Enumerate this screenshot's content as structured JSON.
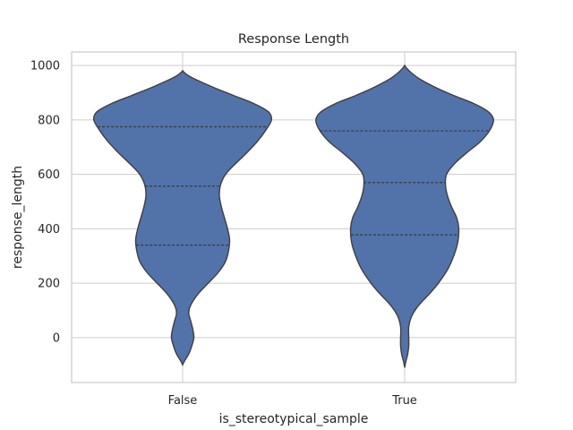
{
  "chart_data": {
    "type": "violin",
    "title": "Response Length",
    "xlabel": "is_stereotypical_sample",
    "ylabel": "response_length",
    "categories": [
      "False",
      "True"
    ],
    "ylim": [
      -165,
      1050
    ],
    "yticks": [
      0,
      200,
      400,
      600,
      800,
      1000
    ],
    "grid": true,
    "color": "#4f6fa8",
    "series": [
      {
        "category": "False",
        "min": -100,
        "max": 980,
        "quartiles": [
          340,
          557,
          775
        ],
        "density": [
          [
            -100,
            0.0
          ],
          [
            -85,
            0.02
          ],
          [
            -60,
            0.06
          ],
          [
            -30,
            0.09
          ],
          [
            0,
            0.11
          ],
          [
            30,
            0.1
          ],
          [
            60,
            0.08
          ],
          [
            90,
            0.06
          ],
          [
            120,
            0.08
          ],
          [
            160,
            0.15
          ],
          [
            200,
            0.25
          ],
          [
            240,
            0.35
          ],
          [
            280,
            0.42
          ],
          [
            320,
            0.45
          ],
          [
            360,
            0.46
          ],
          [
            400,
            0.44
          ],
          [
            440,
            0.41
          ],
          [
            480,
            0.38
          ],
          [
            520,
            0.36
          ],
          [
            560,
            0.37
          ],
          [
            600,
            0.42
          ],
          [
            640,
            0.52
          ],
          [
            680,
            0.63
          ],
          [
            720,
            0.73
          ],
          [
            760,
            0.81
          ],
          [
            800,
            0.87
          ],
          [
            830,
            0.84
          ],
          [
            860,
            0.7
          ],
          [
            890,
            0.5
          ],
          [
            920,
            0.3
          ],
          [
            945,
            0.15
          ],
          [
            960,
            0.07
          ],
          [
            970,
            0.03
          ],
          [
            980,
            0.0
          ]
        ]
      },
      {
        "category": "True",
        "min": -110,
        "max": 1000,
        "quartiles": [
          378,
          570,
          760
        ],
        "density": [
          [
            -110,
            0.0
          ],
          [
            -90,
            0.01
          ],
          [
            -60,
            0.03
          ],
          [
            -30,
            0.04
          ],
          [
            0,
            0.04
          ],
          [
            40,
            0.04
          ],
          [
            80,
            0.07
          ],
          [
            120,
            0.14
          ],
          [
            160,
            0.24
          ],
          [
            200,
            0.33
          ],
          [
            250,
            0.42
          ],
          [
            300,
            0.48
          ],
          [
            350,
            0.52
          ],
          [
            400,
            0.53
          ],
          [
            440,
            0.51
          ],
          [
            480,
            0.46
          ],
          [
            520,
            0.42
          ],
          [
            560,
            0.4
          ],
          [
            600,
            0.41
          ],
          [
            640,
            0.49
          ],
          [
            680,
            0.61
          ],
          [
            720,
            0.74
          ],
          [
            760,
            0.83
          ],
          [
            800,
            0.87
          ],
          [
            830,
            0.82
          ],
          [
            860,
            0.68
          ],
          [
            890,
            0.48
          ],
          [
            920,
            0.3
          ],
          [
            950,
            0.15
          ],
          [
            975,
            0.06
          ],
          [
            990,
            0.02
          ],
          [
            1000,
            0.0
          ]
        ]
      }
    ]
  }
}
